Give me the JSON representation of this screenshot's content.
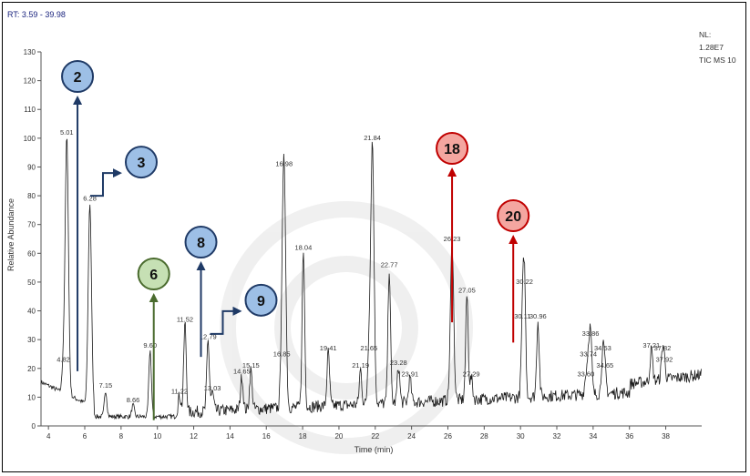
{
  "header": {
    "range_label": "RT: 3.59 - 39.98",
    "nl_label": "NL:",
    "nl_value": "1.28E7",
    "scan_label": "TIC MS 10"
  },
  "colors": {
    "trace": "#1a1a1a",
    "blue_marker": "#9dbfe6",
    "blue_arrow": "#1f3a66",
    "green_marker": "#c6e0b4",
    "green_arrow": "#4a6b2e",
    "red_marker": "#f4a6a0",
    "red_arrow": "#c00000"
  },
  "chart_data": {
    "type": "line",
    "title": "",
    "xlabel": "Time (min)",
    "ylabel": "Relative Abundance",
    "xlim": [
      3.59,
      39.98
    ],
    "ylim": [
      0,
      130
    ],
    "x_ticks": [
      "4",
      "6",
      "8",
      "10",
      "12",
      "14",
      "16",
      "18",
      "20",
      "22",
      "24",
      "26",
      "28",
      "30",
      "32",
      "34",
      "36",
      "38"
    ],
    "y_ticks": [
      "0",
      "10",
      "20",
      "30",
      "40",
      "50",
      "60",
      "70",
      "80",
      "90",
      "100",
      "110",
      "120",
      "130"
    ],
    "grid": false,
    "peaks": [
      {
        "label": "4.82",
        "x": 4.82,
        "y": 21
      },
      {
        "label": "5.01",
        "x": 5.01,
        "y": 100
      },
      {
        "label": "6.28",
        "x": 6.28,
        "y": 77
      },
      {
        "label": "7.15",
        "x": 7.15,
        "y": 12
      },
      {
        "label": "8.66",
        "x": 8.66,
        "y": 7
      },
      {
        "label": "9.60",
        "x": 9.6,
        "y": 26
      },
      {
        "label": "11.22",
        "x": 11.22,
        "y": 10
      },
      {
        "label": "11.52",
        "x": 11.52,
        "y": 35
      },
      {
        "label": "12.79",
        "x": 12.79,
        "y": 29
      },
      {
        "label": "13.03",
        "x": 13.03,
        "y": 11
      },
      {
        "label": "14.65",
        "x": 14.65,
        "y": 17
      },
      {
        "label": "15.15",
        "x": 15.15,
        "y": 19
      },
      {
        "label": "16.85",
        "x": 16.85,
        "y": 23
      },
      {
        "label": "16.98",
        "x": 16.98,
        "y": 89
      },
      {
        "label": "18.04",
        "x": 18.04,
        "y": 60
      },
      {
        "label": "19.41",
        "x": 19.41,
        "y": 25
      },
      {
        "label": "21.19",
        "x": 21.19,
        "y": 19
      },
      {
        "label": "21.65",
        "x": 21.65,
        "y": 25
      },
      {
        "label": "21.84",
        "x": 21.84,
        "y": 98
      },
      {
        "label": "22.77",
        "x": 22.77,
        "y": 54
      },
      {
        "label": "23.28",
        "x": 23.28,
        "y": 20
      },
      {
        "label": "23.91",
        "x": 23.91,
        "y": 16
      },
      {
        "label": "26.23",
        "x": 26.23,
        "y": 63
      },
      {
        "label": "27.05",
        "x": 27.05,
        "y": 45
      },
      {
        "label": "27.29",
        "x": 27.29,
        "y": 16
      },
      {
        "label": "30.11",
        "x": 30.11,
        "y": 36
      },
      {
        "label": "30.22",
        "x": 30.22,
        "y": 48
      },
      {
        "label": "30.96",
        "x": 30.96,
        "y": 36
      },
      {
        "label": "33.60",
        "x": 33.6,
        "y": 16
      },
      {
        "label": "33.74",
        "x": 33.74,
        "y": 23
      },
      {
        "label": "33.86",
        "x": 33.86,
        "y": 30
      },
      {
        "label": "34.53",
        "x": 34.53,
        "y": 25
      },
      {
        "label": "34.65",
        "x": 34.65,
        "y": 19
      },
      {
        "label": "37.21",
        "x": 37.21,
        "y": 26
      },
      {
        "label": "37.82",
        "x": 37.82,
        "y": 25
      },
      {
        "label": "37.92",
        "x": 37.92,
        "y": 21
      }
    ],
    "markers": [
      {
        "label": "2",
        "color": "blue",
        "target_x": 5.6,
        "target_y": 19,
        "style": "straight"
      },
      {
        "label": "3",
        "color": "blue",
        "target_x": 6.3,
        "target_y": 80,
        "style": "bent"
      },
      {
        "label": "6",
        "color": "green",
        "target_x": 9.8,
        "target_y": 2,
        "style": "straight"
      },
      {
        "label": "8",
        "color": "blue",
        "target_x": 12.4,
        "target_y": 24,
        "style": "straight"
      },
      {
        "label": "9",
        "color": "blue",
        "target_x": 12.9,
        "target_y": 32,
        "style": "bent"
      },
      {
        "label": "18",
        "color": "red",
        "target_x": 26.23,
        "target_y": 36,
        "style": "straight"
      },
      {
        "label": "20",
        "color": "red",
        "target_x": 29.6,
        "target_y": 29,
        "style": "straight"
      }
    ]
  }
}
